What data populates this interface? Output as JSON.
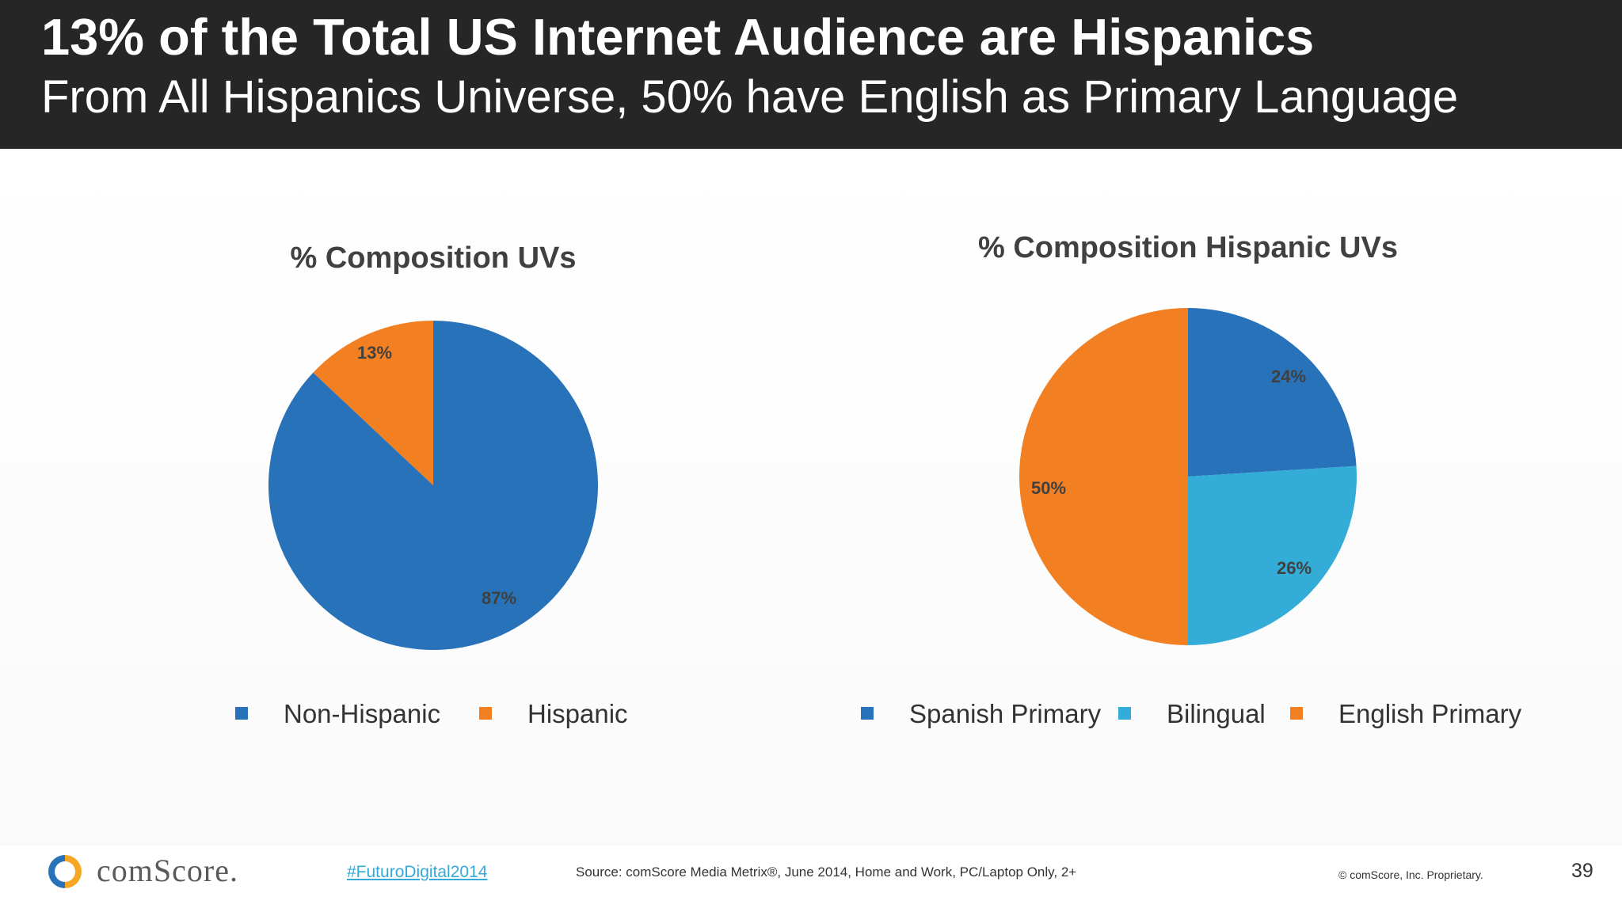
{
  "header": {
    "title": "13% of the Total US Internet Audience are Hispanics",
    "subtitle": "From All Hispanics Universe, 50% have English as Primary Language"
  },
  "colors": {
    "header_bg": "#262626",
    "blue": "#2872b9",
    "orange": "#f28022",
    "light_blue": "#33acd8",
    "label_text": "#404040"
  },
  "chart_data": [
    {
      "type": "pie",
      "title": "% Composition UVs",
      "categories": [
        "Non-Hispanic",
        "Hispanic"
      ],
      "values": [
        87,
        13
      ],
      "labels": [
        "87%",
        "13%"
      ],
      "colors": [
        "#2872b9",
        "#f28022"
      ],
      "legend": "bottom"
    },
    {
      "type": "pie",
      "title": "% Composition Hispanic UVs",
      "categories": [
        "Spanish Primary",
        "Bilingual",
        "English Primary"
      ],
      "values": [
        24,
        26,
        50
      ],
      "labels": [
        "24%",
        "26%",
        "50%"
      ],
      "colors": [
        "#2872b9",
        "#33acd8",
        "#f28022"
      ],
      "legend": "bottom"
    }
  ],
  "footer": {
    "logo_text": "comScore.",
    "logo_icon": "comscore-logo-icon",
    "hashtag": "#FuturoDigital2014",
    "source": "Source: comScore Media Metrix®, June 2014, Home and Work, PC/Laptop Only, 2+",
    "copyright": "© comScore, Inc. Proprietary.",
    "page_number": "39"
  }
}
